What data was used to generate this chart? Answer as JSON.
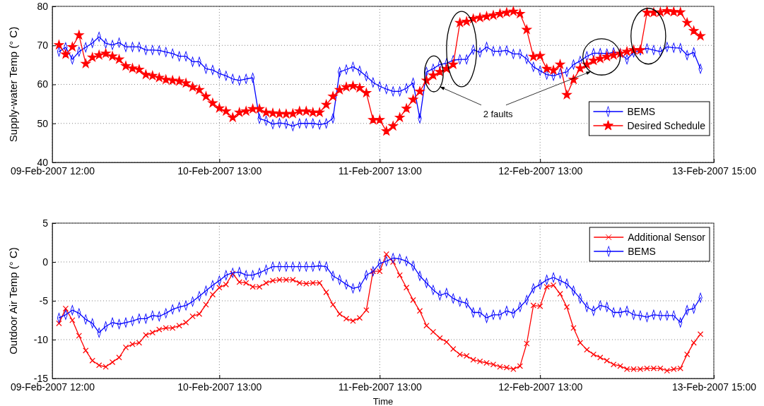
{
  "chart_data": [
    {
      "type": "line",
      "ylabel": "Supply-water Temp (° C)",
      "x": [
        "2007-02-09T13:00",
        "2007-02-09T14:00",
        "2007-02-09T15:00",
        "2007-02-09T16:00",
        "2007-02-09T17:00",
        "2007-02-09T18:00",
        "2007-02-09T19:00",
        "2007-02-09T20:00",
        "2007-02-09T21:00",
        "2007-02-09T22:00",
        "2007-02-09T23:00",
        "2007-02-10T00:00",
        "2007-02-10T01:00",
        "2007-02-10T02:00",
        "2007-02-10T03:00",
        "2007-02-10T04:00",
        "2007-02-10T05:00",
        "2007-02-10T06:00",
        "2007-02-10T07:00",
        "2007-02-10T08:00",
        "2007-02-10T09:00",
        "2007-02-10T10:00",
        "2007-02-10T11:00",
        "2007-02-10T12:00",
        "2007-02-10T13:00",
        "2007-02-10T14:00",
        "2007-02-10T15:00",
        "2007-02-10T16:00",
        "2007-02-10T17:00",
        "2007-02-10T18:00",
        "2007-02-10T19:00",
        "2007-02-10T20:00",
        "2007-02-10T21:00",
        "2007-02-10T22:00",
        "2007-02-10T23:00",
        "2007-02-11T00:00",
        "2007-02-11T01:00",
        "2007-02-11T02:00",
        "2007-02-11T03:00",
        "2007-02-11T04:00",
        "2007-02-11T05:00",
        "2007-02-11T06:00",
        "2007-02-11T07:00",
        "2007-02-11T08:00",
        "2007-02-11T09:00",
        "2007-02-11T10:00",
        "2007-02-11T11:00",
        "2007-02-11T12:00",
        "2007-02-11T13:00",
        "2007-02-11T14:00",
        "2007-02-11T15:00",
        "2007-02-11T16:00",
        "2007-02-11T17:00",
        "2007-02-11T18:00",
        "2007-02-11T19:00",
        "2007-02-11T20:00",
        "2007-02-11T21:00",
        "2007-02-11T22:00",
        "2007-02-11T23:00",
        "2007-02-12T00:00",
        "2007-02-12T01:00",
        "2007-02-12T02:00",
        "2007-02-12T03:00",
        "2007-02-12T04:00",
        "2007-02-12T05:00",
        "2007-02-12T06:00",
        "2007-02-12T07:00",
        "2007-02-12T08:00",
        "2007-02-12T09:00",
        "2007-02-12T10:00",
        "2007-02-12T11:00",
        "2007-02-12T12:00",
        "2007-02-12T13:00",
        "2007-02-12T14:00",
        "2007-02-12T15:00",
        "2007-02-12T16:00",
        "2007-02-12T17:00",
        "2007-02-12T18:00",
        "2007-02-12T19:00",
        "2007-02-12T20:00",
        "2007-02-12T21:00",
        "2007-02-12T22:00",
        "2007-02-12T23:00",
        "2007-02-13T00:00",
        "2007-02-13T01:00",
        "2007-02-13T02:00",
        "2007-02-13T03:00",
        "2007-02-13T04:00",
        "2007-02-13T05:00",
        "2007-02-13T06:00",
        "2007-02-13T07:00",
        "2007-02-13T08:00",
        "2007-02-13T09:00",
        "2007-02-13T10:00",
        "2007-02-13T11:00",
        "2007-02-13T12:00",
        "2007-02-13T13:00"
      ],
      "xlim": [
        "2007-02-09T12:00",
        "2007-02-13T15:00"
      ],
      "xticks": [
        {
          "value": "2007-02-09T12:00",
          "label": "09-Feb-2007 12:00"
        },
        {
          "value": "2007-02-10T13:00",
          "label": "10-Feb-2007 13:00"
        },
        {
          "value": "2007-02-11T13:00",
          "label": "11-Feb-2007 13:00"
        },
        {
          "value": "2007-02-12T13:00",
          "label": "12-Feb-2007 13:00"
        },
        {
          "value": "2007-02-13T15:00",
          "label": "13-Feb-2007 15:00"
        }
      ],
      "ylim": [
        40,
        80
      ],
      "yticks": [
        40,
        50,
        60,
        70,
        80
      ],
      "grid": true,
      "legend": "bottom right",
      "line_style": "solid",
      "annotations": [
        "2 faults"
      ],
      "series": [
        {
          "name": "BEMS",
          "color": "#0000ff",
          "marker": "diamond",
          "values": [
            68.4,
            69.5,
            66.4,
            68.4,
            69.5,
            70.6,
            72.2,
            70.5,
            70.1,
            70.7,
            69.6,
            69.6,
            69.6,
            68.8,
            68.8,
            68.7,
            68.3,
            67.9,
            67.2,
            67.2,
            65.8,
            65.8,
            64.0,
            63.7,
            62.8,
            62.2,
            61.4,
            61.0,
            61.4,
            61.7,
            51.2,
            50.7,
            49.8,
            50.1,
            49.9,
            49.3,
            50.0,
            50.0,
            50.0,
            49.7,
            50.0,
            51.3,
            63.2,
            63.8,
            64.5,
            63.5,
            62.1,
            60.5,
            59.5,
            58.8,
            58.2,
            58.2,
            59.0,
            60.4,
            51.3,
            63.2,
            64.0,
            65.1,
            65.4,
            66.2,
            66.4,
            66.4,
            68.9,
            68.2,
            69.6,
            68.5,
            68.5,
            68.7,
            67.8,
            67.8,
            66.5,
            64.5,
            63.5,
            62.5,
            62.2,
            62.8,
            63.2,
            65.1,
            66.0,
            67.2,
            68.0,
            68.0,
            67.9,
            68.2,
            68.0,
            66.4,
            68.2,
            68.7,
            69.2,
            68.8,
            68.4,
            69.6,
            69.4,
            69.3,
            67.5,
            68.2,
            64.0
          ]
        },
        {
          "name": "Desired Schedule",
          "color": "#ff0000",
          "marker": "star",
          "values": [
            70.1,
            67.7,
            69.6,
            72.6,
            65.3,
            66.9,
            67.5,
            67.9,
            67.2,
            66.4,
            64.7,
            64.1,
            63.8,
            62.5,
            62.2,
            61.7,
            61.2,
            61.0,
            60.8,
            60.3,
            59.3,
            58.6,
            56.9,
            55.2,
            53.9,
            53.1,
            51.5,
            52.8,
            53.1,
            53.7,
            53.7,
            52.8,
            52.6,
            52.5,
            52.4,
            52.5,
            53.1,
            53.1,
            52.8,
            52.8,
            54.8,
            56.9,
            58.6,
            59.3,
            59.6,
            59.1,
            57.8,
            50.9,
            50.9,
            48.0,
            49.3,
            51.5,
            53.8,
            56.1,
            58.2,
            61.0,
            62.3,
            63.2,
            64.0,
            65.1,
            75.8,
            76.1,
            76.8,
            77.1,
            77.4,
            77.7,
            78.1,
            78.4,
            78.7,
            78.1,
            74.0,
            67.1,
            67.3,
            64.0,
            63.6,
            65.1,
            57.3,
            61.2,
            64.1,
            65.1,
            66.1,
            66.6,
            67.1,
            67.5,
            67.9,
            68.4,
            68.8,
            68.8,
            78.4,
            78.4,
            78.5,
            78.8,
            78.6,
            78.5,
            75.8,
            73.7,
            72.4
          ]
        }
      ]
    },
    {
      "type": "line",
      "ylabel": "Outdoor Air Temp (° C)",
      "xlabel": "Time",
      "x": [
        "2007-02-09T13:00",
        "2007-02-09T14:00",
        "2007-02-09T15:00",
        "2007-02-09T16:00",
        "2007-02-09T17:00",
        "2007-02-09T18:00",
        "2007-02-09T19:00",
        "2007-02-09T20:00",
        "2007-02-09T21:00",
        "2007-02-09T22:00",
        "2007-02-09T23:00",
        "2007-02-10T00:00",
        "2007-02-10T01:00",
        "2007-02-10T02:00",
        "2007-02-10T03:00",
        "2007-02-10T04:00",
        "2007-02-10T05:00",
        "2007-02-10T06:00",
        "2007-02-10T07:00",
        "2007-02-10T08:00",
        "2007-02-10T09:00",
        "2007-02-10T10:00",
        "2007-02-10T11:00",
        "2007-02-10T12:00",
        "2007-02-10T13:00",
        "2007-02-10T14:00",
        "2007-02-10T15:00",
        "2007-02-10T16:00",
        "2007-02-10T17:00",
        "2007-02-10T18:00",
        "2007-02-10T19:00",
        "2007-02-10T20:00",
        "2007-02-10T21:00",
        "2007-02-10T22:00",
        "2007-02-10T23:00",
        "2007-02-11T00:00",
        "2007-02-11T01:00",
        "2007-02-11T02:00",
        "2007-02-11T03:00",
        "2007-02-11T04:00",
        "2007-02-11T05:00",
        "2007-02-11T06:00",
        "2007-02-11T07:00",
        "2007-02-11T08:00",
        "2007-02-11T09:00",
        "2007-02-11T10:00",
        "2007-02-11T11:00",
        "2007-02-11T12:00",
        "2007-02-11T13:00",
        "2007-02-11T14:00",
        "2007-02-11T15:00",
        "2007-02-11T16:00",
        "2007-02-11T17:00",
        "2007-02-11T18:00",
        "2007-02-11T19:00",
        "2007-02-11T20:00",
        "2007-02-11T21:00",
        "2007-02-11T22:00",
        "2007-02-11T23:00",
        "2007-02-12T00:00",
        "2007-02-12T01:00",
        "2007-02-12T02:00",
        "2007-02-12T03:00",
        "2007-02-12T04:00",
        "2007-02-12T05:00",
        "2007-02-12T06:00",
        "2007-02-12T07:00",
        "2007-02-12T08:00",
        "2007-02-12T09:00",
        "2007-02-12T10:00",
        "2007-02-12T11:00",
        "2007-02-12T12:00",
        "2007-02-12T13:00",
        "2007-02-12T14:00",
        "2007-02-12T15:00",
        "2007-02-12T16:00",
        "2007-02-12T17:00",
        "2007-02-12T18:00",
        "2007-02-12T19:00",
        "2007-02-12T20:00",
        "2007-02-12T21:00",
        "2007-02-12T22:00",
        "2007-02-12T23:00",
        "2007-02-13T00:00",
        "2007-02-13T01:00",
        "2007-02-13T02:00",
        "2007-02-13T03:00",
        "2007-02-13T04:00",
        "2007-02-13T05:00",
        "2007-02-13T06:00",
        "2007-02-13T07:00",
        "2007-02-13T08:00",
        "2007-02-13T09:00",
        "2007-02-13T10:00",
        "2007-02-13T11:00",
        "2007-02-13T12:00",
        "2007-02-13T13:00"
      ],
      "xlim": [
        "2007-02-09T12:00",
        "2007-02-13T15:00"
      ],
      "xticks": [
        {
          "value": "2007-02-09T12:00",
          "label": "09-Feb-2007 12:00"
        },
        {
          "value": "2007-02-10T13:00",
          "label": "10-Feb-2007 13:00"
        },
        {
          "value": "2007-02-11T13:00",
          "label": "11-Feb-2007 13:00"
        },
        {
          "value": "2007-02-12T13:00",
          "label": "12-Feb-2007 13:00"
        },
        {
          "value": "2007-02-13T15:00",
          "label": "13-Feb-2007 15:00"
        }
      ],
      "ylim": [
        -15,
        5
      ],
      "yticks": [
        -15,
        -10,
        -5,
        0,
        5
      ],
      "grid": true,
      "legend": "top right",
      "line_style": "solid",
      "series": [
        {
          "name": "Additional Sensor",
          "color": "#ff0000",
          "marker": "cross",
          "values": [
            -7.9,
            -6.0,
            -7.5,
            -9.5,
            -11.4,
            -12.7,
            -13.3,
            -13.5,
            -12.9,
            -12.3,
            -11.0,
            -10.6,
            -10.4,
            -9.4,
            -9.1,
            -8.7,
            -8.5,
            -8.5,
            -8.2,
            -7.8,
            -7.0,
            -6.7,
            -5.5,
            -4.2,
            -3.3,
            -2.9,
            -1.5,
            -2.6,
            -2.7,
            -3.2,
            -3.2,
            -2.7,
            -2.4,
            -2.3,
            -2.3,
            -2.3,
            -2.7,
            -2.8,
            -2.7,
            -2.7,
            -3.9,
            -5.5,
            -6.7,
            -7.3,
            -7.6,
            -7.2,
            -6.2,
            -1.2,
            -1.2,
            1.0,
            0.0,
            -1.7,
            -3.3,
            -4.9,
            -6.3,
            -8.2,
            -9.0,
            -9.8,
            -10.3,
            -11.2,
            -11.9,
            -12.1,
            -12.6,
            -12.8,
            -13.0,
            -13.2,
            -13.5,
            -13.6,
            -13.8,
            -13.4,
            -10.5,
            -5.6,
            -5.7,
            -3.2,
            -3.0,
            -4.1,
            -5.8,
            -8.5,
            -10.4,
            -11.3,
            -11.9,
            -12.3,
            -12.7,
            -13.2,
            -13.4,
            -13.8,
            -13.8,
            -13.8,
            -13.7,
            -13.7,
            -13.7,
            -14.0,
            -13.8,
            -13.7,
            -11.9,
            -10.4,
            -9.3
          ]
        },
        {
          "name": "BEMS",
          "color": "#0000ff",
          "marker": "diamond",
          "values": [
            -7.2,
            -6.8,
            -6.2,
            -6.6,
            -7.4,
            -7.9,
            -9.1,
            -8.3,
            -7.8,
            -8.0,
            -7.8,
            -7.6,
            -7.3,
            -7.3,
            -6.9,
            -7.0,
            -6.6,
            -6.1,
            -5.8,
            -5.6,
            -5.1,
            -4.4,
            -3.7,
            -3.0,
            -2.4,
            -1.7,
            -1.4,
            -1.3,
            -1.7,
            -1.7,
            -1.4,
            -1.0,
            -0.6,
            -0.6,
            -0.6,
            -0.6,
            -0.6,
            -0.6,
            -0.6,
            -0.5,
            -0.6,
            -1.8,
            -2.3,
            -2.9,
            -3.4,
            -3.2,
            -1.7,
            -1.2,
            -0.2,
            0.1,
            0.5,
            0.4,
            0.1,
            -0.5,
            -1.8,
            -2.7,
            -3.6,
            -4.3,
            -4.0,
            -4.7,
            -5.1,
            -5.3,
            -6.5,
            -6.5,
            -7.2,
            -6.8,
            -6.8,
            -6.3,
            -6.6,
            -5.8,
            -4.9,
            -3.4,
            -2.9,
            -2.3,
            -2.0,
            -2.4,
            -2.8,
            -3.7,
            -4.7,
            -5.8,
            -6.3,
            -5.6,
            -5.8,
            -6.5,
            -6.5,
            -6.3,
            -6.8,
            -6.9,
            -7.1,
            -6.8,
            -6.9,
            -6.9,
            -6.9,
            -7.8,
            -6.2,
            -6.0,
            -4.6
          ]
        }
      ]
    }
  ]
}
